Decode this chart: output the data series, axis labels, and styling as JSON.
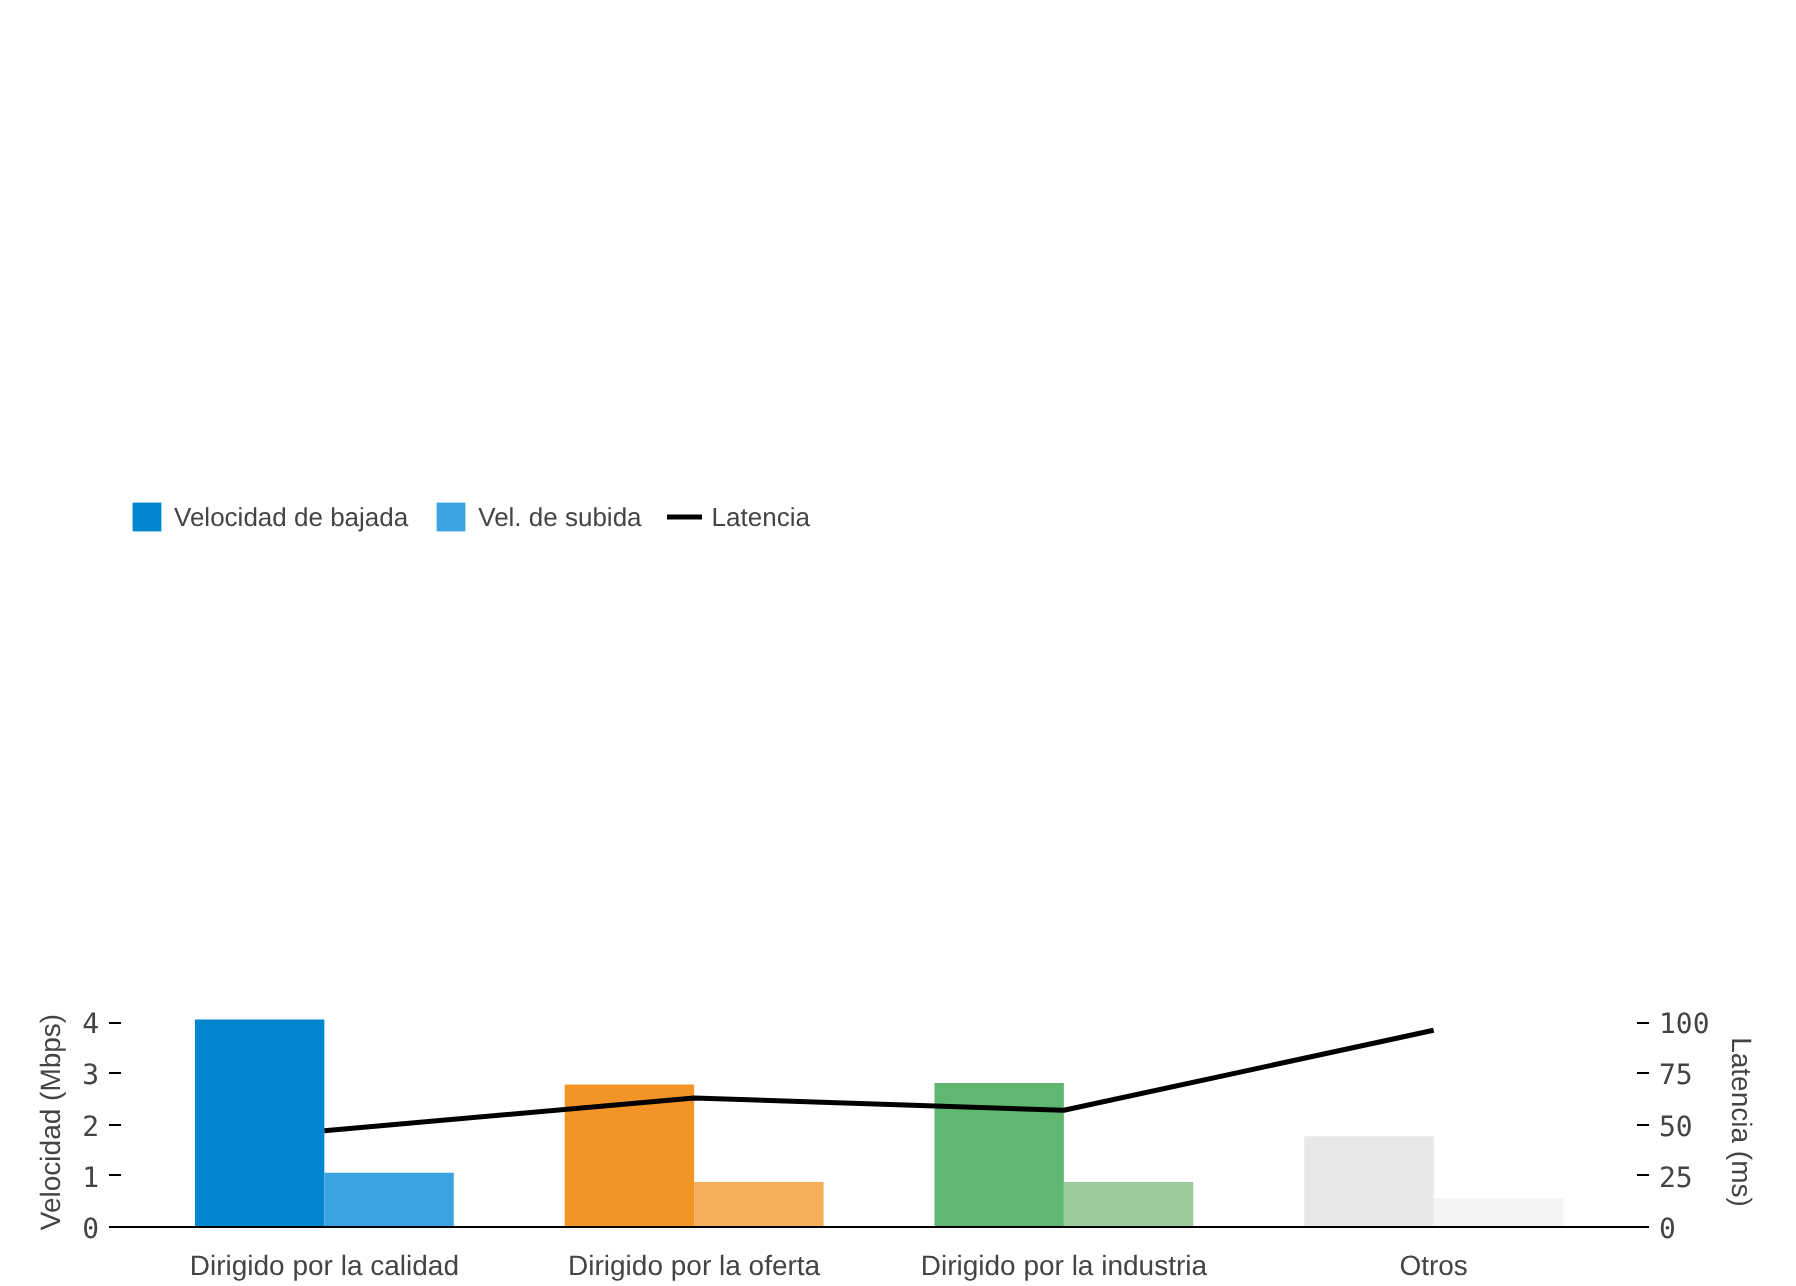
{
  "chart_data": {
    "type": "bar",
    "categories": [
      "Dirigido por la calidad",
      "Dirigido por la oferta",
      "Dirigido por la industria",
      "Otros"
    ],
    "series": [
      {
        "name": "Velocidad de bajada",
        "colors": [
          "#0085cf",
          "#f39427",
          "#5fb772",
          "#e8e8e8"
        ],
        "values": [
          4.05,
          2.78,
          2.81,
          1.77
        ]
      },
      {
        "name": "Vel. de subida",
        "colors": [
          "#3ba4e0",
          "#f5ae5b",
          "#9ccc9b",
          "#f4f4f4"
        ],
        "values": [
          1.06,
          0.88,
          0.88,
          0.56
        ]
      },
      {
        "name": "Latencia",
        "type": "line",
        "axis": "y2",
        "color": "#000000",
        "values": [
          47,
          63,
          57,
          96
        ]
      }
    ],
    "ylabel": "Velocidad (Mbps)",
    "y2label": "Latencia (ms)",
    "ylim": [
      0,
      4.1
    ],
    "yticks": [
      0,
      1,
      2,
      3,
      4
    ],
    "y2lim": [
      0,
      102.5
    ],
    "y2ticks": [
      0,
      25,
      50,
      75,
      100
    ],
    "grid": false,
    "legend": "top left",
    "marker": "none",
    "line_style": "solid"
  }
}
